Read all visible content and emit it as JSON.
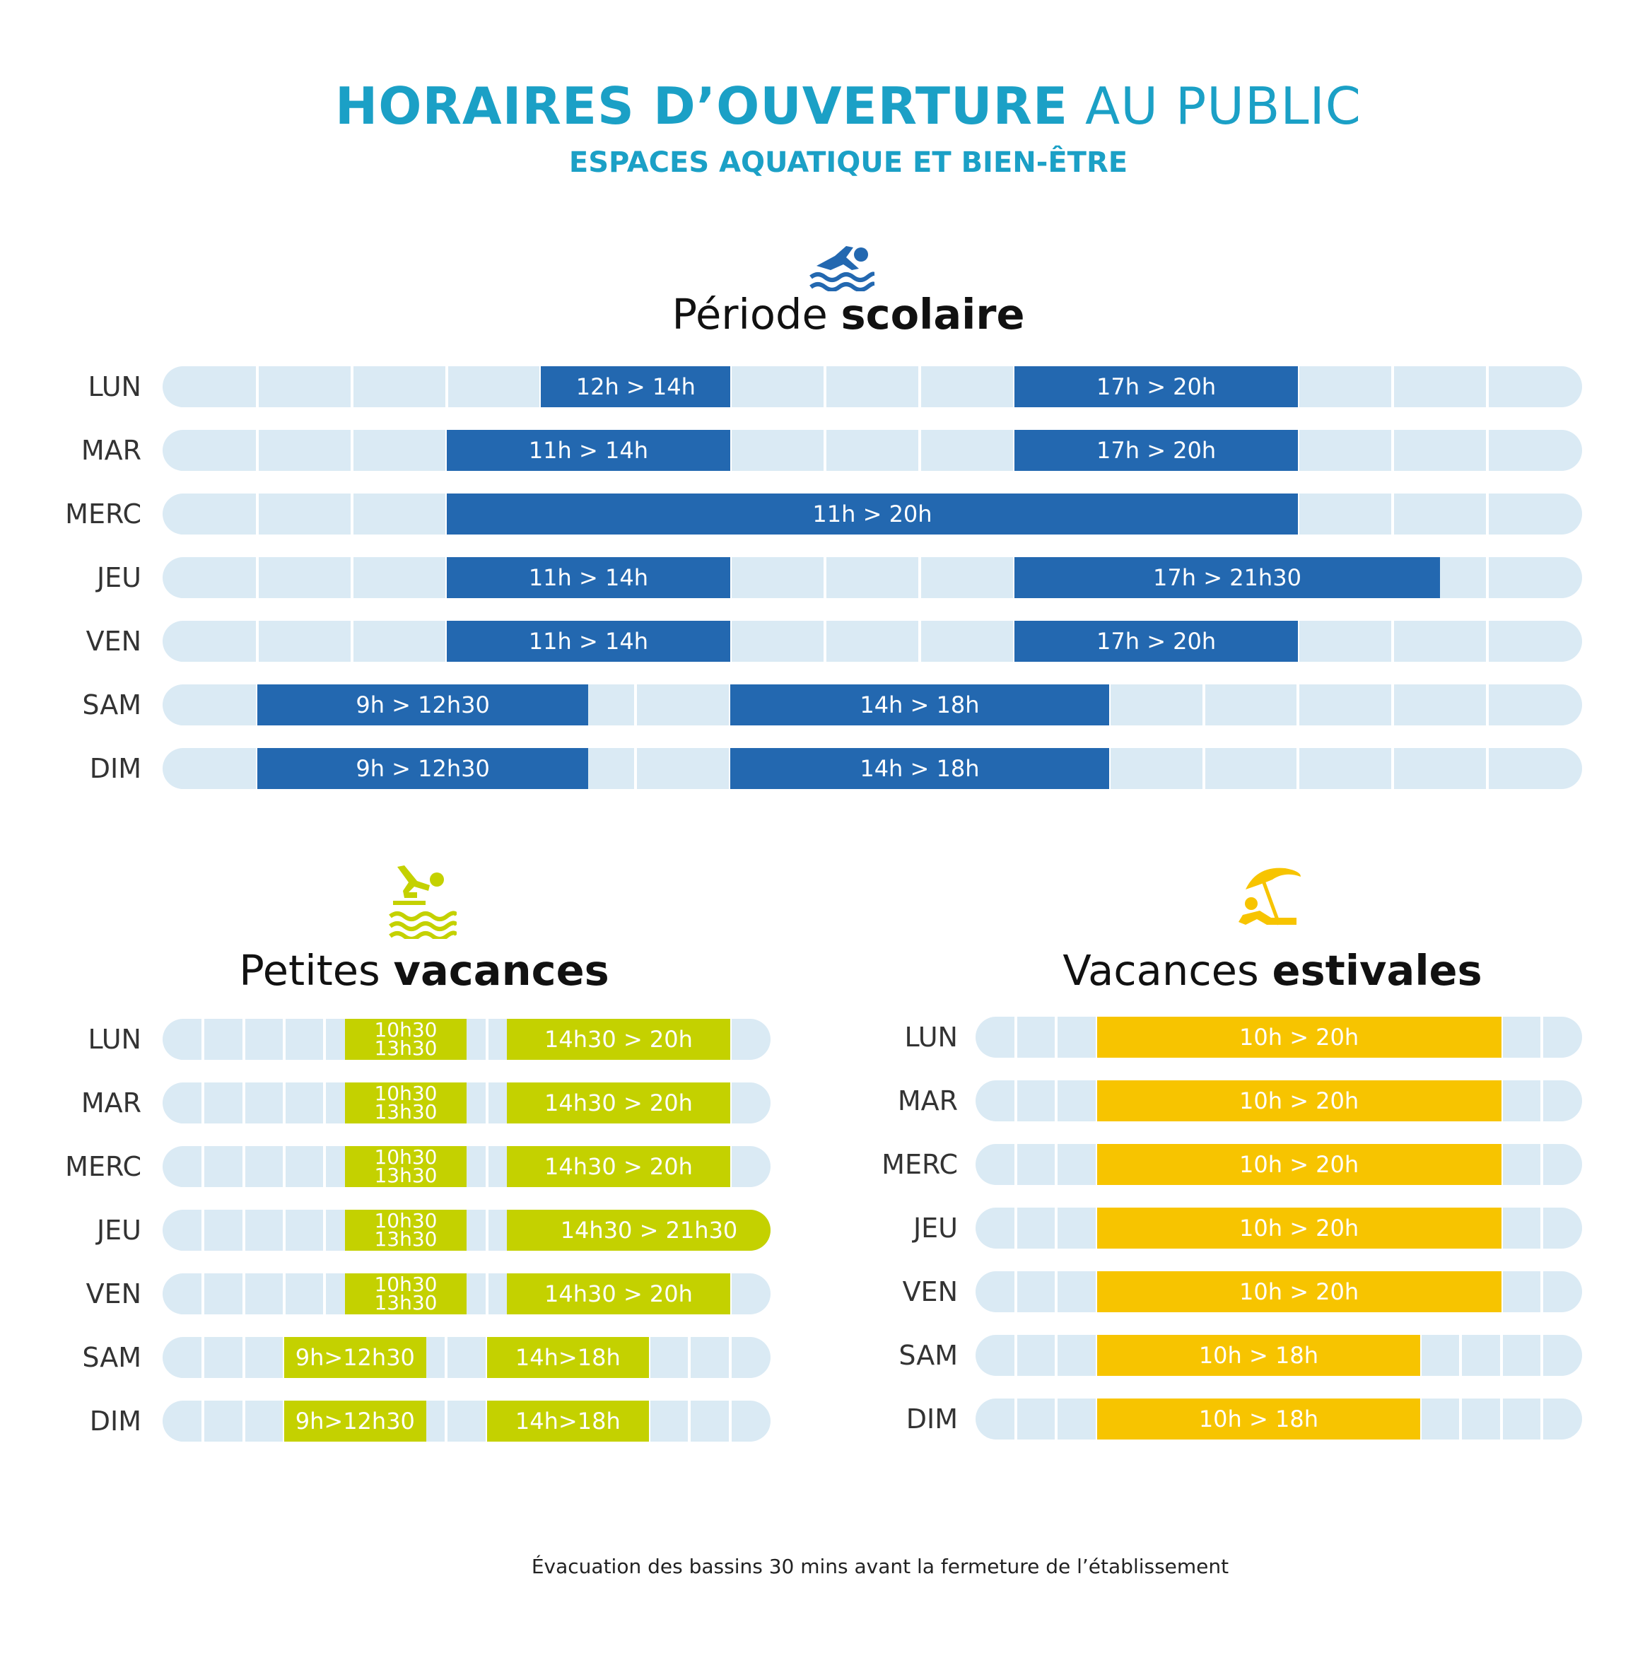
{
  "title": {
    "bold": "HORAIRES D’OUVERTURE",
    "light": "AU PUBLIC"
  },
  "subtitle": "ESPACES AQUATIQUE ET BIEN-ÊTRE",
  "colors": {
    "accent": "#1ba0c6",
    "track": "#daeaf4",
    "scolaire": "#2368b0",
    "petites": "#c4d100",
    "estivales": "#f7c400"
  },
  "sections": {
    "scolaire": {
      "icon": "swimmer-icon",
      "title_light": "Période",
      "title_bold": "scolaire",
      "days": [
        {
          "day": "LUN",
          "slots": [
            {
              "start": 12,
              "end": 14,
              "label": "12h > 14h"
            },
            {
              "start": 17,
              "end": 20,
              "label": "17h > 20h"
            }
          ]
        },
        {
          "day": "MAR",
          "slots": [
            {
              "start": 11,
              "end": 14,
              "label": "11h > 14h"
            },
            {
              "start": 17,
              "end": 20,
              "label": "17h > 20h"
            }
          ]
        },
        {
          "day": "MERC",
          "slots": [
            {
              "start": 11,
              "end": 20,
              "label": "11h > 20h"
            }
          ]
        },
        {
          "day": "JEU",
          "slots": [
            {
              "start": 11,
              "end": 14,
              "label": "11h > 14h"
            },
            {
              "start": 17,
              "end": 21.5,
              "label": "17h > 21h30"
            }
          ]
        },
        {
          "day": "VEN",
          "slots": [
            {
              "start": 11,
              "end": 14,
              "label": "11h > 14h"
            },
            {
              "start": 17,
              "end": 20,
              "label": "17h > 20h"
            }
          ]
        },
        {
          "day": "SAM",
          "slots": [
            {
              "start": 9,
              "end": 12.5,
              "label": "9h > 12h30"
            },
            {
              "start": 14,
              "end": 18,
              "label": "14h > 18h"
            }
          ]
        },
        {
          "day": "DIM",
          "slots": [
            {
              "start": 9,
              "end": 12.5,
              "label": "9h > 12h30"
            },
            {
              "start": 14,
              "end": 18,
              "label": "14h > 18h"
            }
          ]
        }
      ]
    },
    "petites": {
      "icon": "diver-icon",
      "title_light": "Petites",
      "title_bold": "vacances",
      "days": [
        {
          "day": "LUN",
          "slots": [
            {
              "start": 10.5,
              "end": 13.5,
              "line1": "10h30",
              "line2": "13h30"
            },
            {
              "start": 14.5,
              "end": 20,
              "label": "14h30 > 20h"
            }
          ]
        },
        {
          "day": "MAR",
          "slots": [
            {
              "start": 10.5,
              "end": 13.5,
              "line1": "10h30",
              "line2": "13h30"
            },
            {
              "start": 14.5,
              "end": 20,
              "label": "14h30 > 20h"
            }
          ]
        },
        {
          "day": "MERC",
          "slots": [
            {
              "start": 10.5,
              "end": 13.5,
              "line1": "10h30",
              "line2": "13h30"
            },
            {
              "start": 14.5,
              "end": 20,
              "label": "14h30 > 20h"
            }
          ]
        },
        {
          "day": "JEU",
          "slots": [
            {
              "start": 10.5,
              "end": 13.5,
              "line1": "10h30",
              "line2": "13h30"
            },
            {
              "start": 14.5,
              "end": 21.5,
              "label": "14h30 > 21h30"
            }
          ]
        },
        {
          "day": "VEN",
          "slots": [
            {
              "start": 10.5,
              "end": 13.5,
              "line1": "10h30",
              "line2": "13h30"
            },
            {
              "start": 14.5,
              "end": 20,
              "label": "14h30 > 20h"
            }
          ]
        },
        {
          "day": "SAM",
          "slots": [
            {
              "start": 9,
              "end": 12.5,
              "label": "9h>12h30"
            },
            {
              "start": 14,
              "end": 18,
              "label": "14h>18h"
            }
          ]
        },
        {
          "day": "DIM",
          "slots": [
            {
              "start": 9,
              "end": 12.5,
              "label": "9h>12h30"
            },
            {
              "start": 14,
              "end": 18,
              "label": "14h>18h"
            }
          ]
        }
      ]
    },
    "estivales": {
      "icon": "beach-umbrella-icon",
      "title_light": "Vacances",
      "title_bold": "estivales",
      "days": [
        {
          "day": "LUN",
          "slots": [
            {
              "start": 10,
              "end": 20,
              "label": "10h > 20h"
            }
          ]
        },
        {
          "day": "MAR",
          "slots": [
            {
              "start": 10,
              "end": 20,
              "label": "10h > 20h"
            }
          ]
        },
        {
          "day": "MERC",
          "slots": [
            {
              "start": 10,
              "end": 20,
              "label": "10h > 20h"
            }
          ]
        },
        {
          "day": "JEU",
          "slots": [
            {
              "start": 10,
              "end": 20,
              "label": "10h > 20h"
            }
          ]
        },
        {
          "day": "VEN",
          "slots": [
            {
              "start": 10,
              "end": 20,
              "label": "10h > 20h"
            }
          ]
        },
        {
          "day": "SAM",
          "slots": [
            {
              "start": 10,
              "end": 18,
              "label": "10h > 18h"
            }
          ]
        },
        {
          "day": "DIM",
          "slots": [
            {
              "start": 10,
              "end": 18,
              "label": "10h > 18h"
            }
          ]
        }
      ]
    }
  },
  "footnote": "Évacuation des bassins 30 mins avant la fermeture de l’établissement"
}
